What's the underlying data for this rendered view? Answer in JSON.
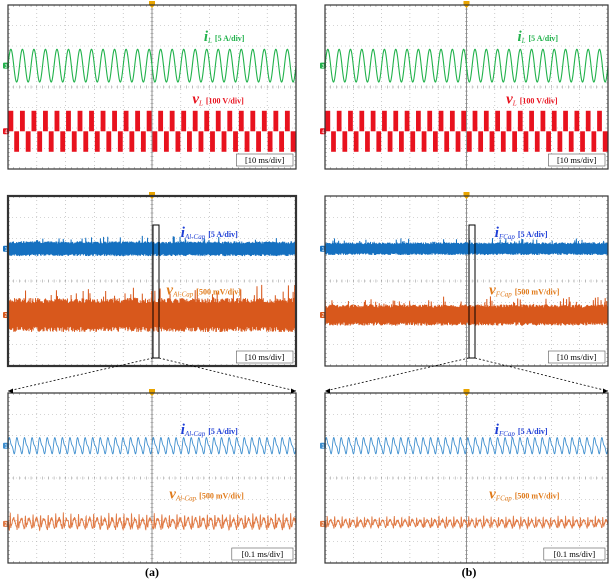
{
  "figure": {
    "captions": [
      "(a)",
      "(b)"
    ]
  },
  "colors": {
    "green": "#22b24c",
    "red": "#e8121e",
    "blue": "#1570c0",
    "orange": "#d8581c",
    "light_blue": "#3f8fcf",
    "light_orange": "#e07a45",
    "label_blue": "#1f3fd6",
    "label_orange": "#e07a1a",
    "trigger": "#e9a400",
    "grid": "#aaaaaa",
    "frame": "#333333"
  },
  "chart_data": [
    {
      "type": "line",
      "id": "a-top",
      "column": "a",
      "time_scale": "[10 ms/div]",
      "divisions": [
        10,
        8
      ],
      "series": [
        {
          "symbol": "i",
          "subscript": "L",
          "scale": "[5 A/div]",
          "channel": "3",
          "color": "#22b24c",
          "waveform": "sine",
          "cycles": 25,
          "amplitude_div": 0.8
        },
        {
          "symbol": "v",
          "subscript": "L",
          "scale": "[100 V/div]",
          "channel": "4",
          "color": "#e8121e",
          "waveform": "pwm-bipolar",
          "cycles": 25,
          "amplitude_div": 1.0
        }
      ]
    },
    {
      "type": "line",
      "id": "b-top",
      "column": "b",
      "time_scale": "[10 ms/div]",
      "divisions": [
        10,
        8
      ],
      "series": [
        {
          "symbol": "i",
          "subscript": "L",
          "scale": "[5 A/div]",
          "channel": "3",
          "color": "#22b24c",
          "waveform": "sine",
          "cycles": 25,
          "amplitude_div": 0.8
        },
        {
          "symbol": "v",
          "subscript": "L",
          "scale": "[100 V/div]",
          "channel": "4",
          "color": "#e8121e",
          "waveform": "pwm-bipolar",
          "cycles": 25,
          "amplitude_div": 1.0
        }
      ]
    },
    {
      "type": "line",
      "id": "a-mid",
      "column": "a",
      "time_scale": "[10 ms/div]",
      "divisions": [
        10,
        8
      ],
      "series": [
        {
          "symbol": "i",
          "subscript": "Al-Cap",
          "scale": "[5 A/div]",
          "channel": "1",
          "color": "#1570c0",
          "waveform": "dense-band",
          "amplitude_div": 0.35
        },
        {
          "symbol": "v",
          "subscript": "Al-Cap",
          "scale": "[500 mV/div]",
          "channel": "2",
          "color": "#d8581c",
          "waveform": "dense-band",
          "amplitude_div": 0.8
        }
      ]
    },
    {
      "type": "line",
      "id": "b-mid",
      "column": "b",
      "time_scale": "[10 ms/div]",
      "divisions": [
        10,
        8
      ],
      "series": [
        {
          "symbol": "i",
          "subscript": "FCap",
          "scale": "[5 A/div]",
          "channel": "1",
          "color": "#1570c0",
          "waveform": "dense-band",
          "amplitude_div": 0.3
        },
        {
          "symbol": "v",
          "subscript": "FCap",
          "scale": "[500 mV/div]",
          "channel": "2",
          "color": "#d8581c",
          "waveform": "dense-band",
          "amplitude_div": 0.5
        }
      ]
    },
    {
      "type": "line",
      "id": "a-bot",
      "column": "a",
      "time_scale": "[0.1 ms/div]",
      "divisions": [
        10,
        8
      ],
      "series": [
        {
          "symbol": "i",
          "subscript": "Al-Cap",
          "scale": "[5 A/div]",
          "channel": "1",
          "color": "#3f8fcf",
          "waveform": "ripple",
          "cycles": 38,
          "amplitude_div": 0.4
        },
        {
          "symbol": "v",
          "subscript": "Al-Cap",
          "scale": "[500 mV/div]",
          "channel": "2",
          "color": "#e07a45",
          "waveform": "ripple",
          "cycles": 38,
          "amplitude_div": 0.7
        }
      ]
    },
    {
      "type": "line",
      "id": "b-bot",
      "column": "b",
      "time_scale": "[0.1 ms/div]",
      "divisions": [
        10,
        8
      ],
      "series": [
        {
          "symbol": "i",
          "subscript": "FCap",
          "scale": "[5 A/div]",
          "channel": "1",
          "color": "#3f8fcf",
          "waveform": "ripple",
          "cycles": 38,
          "amplitude_div": 0.4
        },
        {
          "symbol": "v",
          "subscript": "FCap",
          "scale": "[500 mV/div]",
          "channel": "2",
          "color": "#e07a45",
          "waveform": "ripple",
          "cycles": 38,
          "amplitude_div": 0.5
        }
      ]
    }
  ]
}
